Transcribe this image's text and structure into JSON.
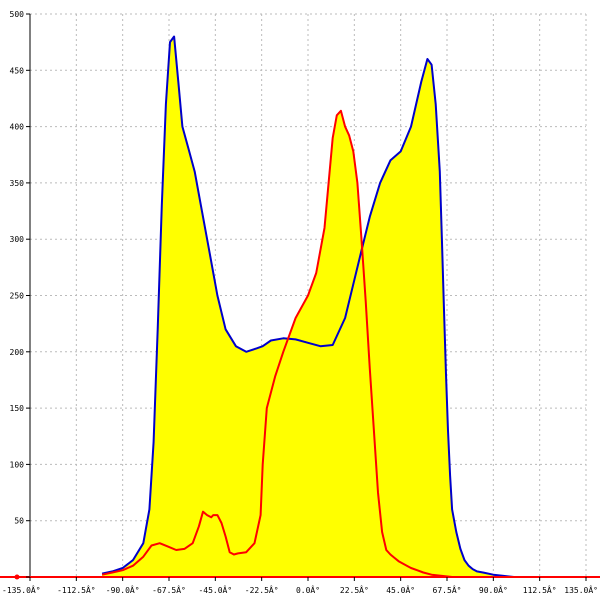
{
  "chart_data": {
    "type": "area",
    "title": "",
    "xlabel": "",
    "ylabel": "",
    "xlim": [
      -135,
      135
    ],
    "ylim": [
      0,
      500
    ],
    "grid": true,
    "x_ticks": [
      -135,
      -112.5,
      -90,
      -67.5,
      -45,
      -22.5,
      0,
      22.5,
      45,
      67.5,
      90,
      112.5,
      135
    ],
    "x_tick_labels": [
      "-135.0Â°",
      "-112.5Â°",
      "-90.0Â°",
      "-67.5Â°",
      "-45.0Â°",
      "-22.5Â°",
      "0.0Â°",
      "22.5Â°",
      "45.0Â°",
      "67.5Â°",
      "90.0Â°",
      "112.5Â°",
      "135.0Â°"
    ],
    "y_ticks": [
      0,
      50,
      100,
      150,
      200,
      250,
      300,
      350,
      400,
      450,
      500
    ],
    "y_tick_labels": [
      "0",
      "50",
      "100",
      "150",
      "200",
      "250",
      "300",
      "350",
      "400",
      "450",
      "500"
    ],
    "fill_color": "#ffff00",
    "baseline_color": "#ff0000",
    "series": [
      {
        "color": "#0000cc",
        "x": [
          -100,
          -95,
          -90,
          -85,
          -80,
          -77,
          -75,
          -73,
          -71,
          -69,
          -67,
          -65,
          -63,
          -61,
          -58,
          -55,
          -52,
          -48,
          -44,
          -40,
          -35,
          -30,
          -25,
          -22,
          -18,
          -12,
          -6,
          0,
          6,
          12,
          18,
          22,
          26,
          30,
          35,
          40,
          45,
          50,
          55,
          58,
          60,
          62,
          64,
          65,
          66,
          67,
          68,
          69,
          70,
          72,
          74,
          76,
          78,
          80,
          82,
          85,
          90,
          95,
          100
        ],
        "y": [
          3,
          5,
          8,
          15,
          30,
          60,
          120,
          220,
          330,
          420,
          475,
          480,
          440,
          400,
          380,
          360,
          330,
          290,
          250,
          220,
          205,
          200,
          203,
          205,
          210,
          212,
          211,
          208,
          205,
          206,
          230,
          260,
          290,
          320,
          350,
          370,
          378,
          400,
          440,
          460,
          455,
          420,
          360,
          300,
          240,
          180,
          130,
          90,
          60,
          40,
          25,
          15,
          10,
          7,
          5,
          4,
          2,
          1,
          0
        ]
      },
      {
        "color": "#ff0000",
        "x": [
          -100,
          -95,
          -90,
          -85,
          -80,
          -76,
          -72,
          -68,
          -64,
          -60,
          -56,
          -53,
          -51,
          -49,
          -47,
          -46,
          -44,
          -42,
          -40,
          -38,
          -36,
          -34,
          -30,
          -26,
          -23,
          -22,
          -20,
          -16,
          -12,
          -6,
          0,
          4,
          8,
          12,
          14,
          16,
          18,
          20,
          22,
          24,
          26,
          28,
          30,
          32,
          34,
          36,
          38,
          40,
          42,
          44,
          46,
          48,
          50,
          53,
          56,
          60,
          65,
          70,
          75,
          80,
          85,
          90,
          95,
          100
        ],
        "y": [
          2,
          4,
          6,
          10,
          18,
          28,
          30,
          27,
          24,
          25,
          30,
          45,
          58,
          55,
          53,
          55,
          55,
          48,
          36,
          22,
          20,
          21,
          22,
          30,
          55,
          100,
          150,
          178,
          200,
          230,
          250,
          270,
          310,
          390,
          410,
          414,
          400,
          392,
          378,
          350,
          300,
          245,
          185,
          130,
          75,
          40,
          24,
          20,
          17,
          14,
          12,
          10,
          8,
          6,
          4,
          2,
          1,
          0,
          0,
          0,
          0,
          0,
          0,
          0
        ]
      }
    ]
  }
}
